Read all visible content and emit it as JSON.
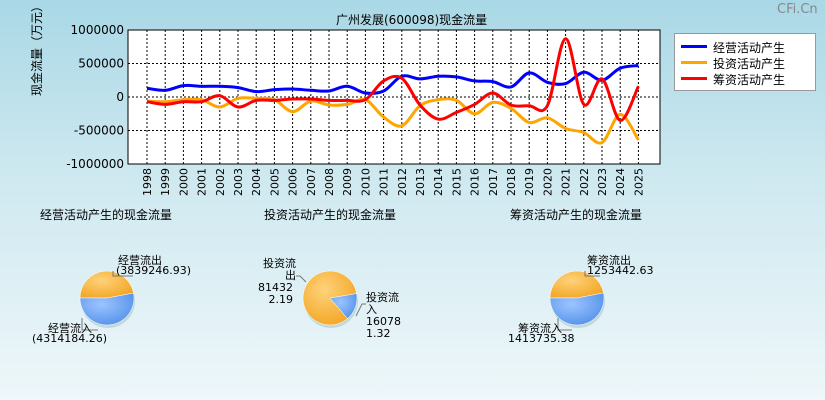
{
  "watermark": "CFi.Cn",
  "chart_data": [
    {
      "type": "line",
      "title": "广州发展(600098)现金流量",
      "ylabel": "现金流量（万元）",
      "ylim": [
        -1000000,
        1000000
      ],
      "yticks": [
        "1000000",
        "500000",
        "0",
        "-500000",
        "-1000000"
      ],
      "yticks_values": [
        1000000,
        500000,
        0,
        -500000,
        -1000000
      ],
      "grid": true,
      "legend": "top-right",
      "x": [
        "1998",
        "1999",
        "2000",
        "2001",
        "2002",
        "2003",
        "2004",
        "2005",
        "2006",
        "2007",
        "2008",
        "2009",
        "2010",
        "2011",
        "2012",
        "2013",
        "2014",
        "2015",
        "2016",
        "2017",
        "2018",
        "2019",
        "2020",
        "2021",
        "2022",
        "2023",
        "2024",
        "2025"
      ],
      "series": [
        {
          "name": "经营活动产生",
          "color": "#0000ff",
          "values": [
            130000,
            100000,
            170000,
            160000,
            160000,
            140000,
            80000,
            110000,
            120000,
            100000,
            90000,
            160000,
            60000,
            90000,
            310000,
            270000,
            310000,
            300000,
            240000,
            230000,
            150000,
            360000,
            220000,
            200000,
            370000,
            250000,
            430000,
            470000
          ]
        },
        {
          "name": "投资活动产生",
          "color": "#ffa500",
          "values": [
            -60000,
            -70000,
            -40000,
            -40000,
            -150000,
            -20000,
            -20000,
            -40000,
            -220000,
            -60000,
            -120000,
            -110000,
            -40000,
            -300000,
            -430000,
            -130000,
            -40000,
            -50000,
            -250000,
            -80000,
            -170000,
            -380000,
            -310000,
            -470000,
            -530000,
            -680000,
            -260000,
            -640000
          ]
        },
        {
          "name": "筹资活动产生",
          "color": "#ff0000",
          "values": [
            -70000,
            -110000,
            -70000,
            -70000,
            20000,
            -150000,
            -50000,
            -50000,
            -30000,
            -30000,
            -50000,
            -50000,
            -40000,
            240000,
            280000,
            -120000,
            -330000,
            -230000,
            -110000,
            60000,
            -120000,
            -130000,
            -130000,
            870000,
            -110000,
            270000,
            -350000,
            160000
          ]
        }
      ]
    },
    {
      "type": "pie",
      "title": "经营活动产生的现金流量",
      "labels": [
        "经营流出",
        "经营流入"
      ],
      "values": [
        3839246.93,
        4314184.26
      ],
      "value_labels": [
        "(3839246.93)",
        "(4314184.26)"
      ]
    },
    {
      "type": "pie",
      "title": "投资活动产生的现金流量",
      "labels": [
        "投资流出",
        "投资流入"
      ],
      "values": [
        814322.19,
        160781.32
      ],
      "value_labels": [
        "814322.19",
        "160781.32"
      ]
    },
    {
      "type": "pie",
      "title": "筹资活动产生的现金流量",
      "labels": [
        "筹资流出",
        "筹资流入"
      ],
      "values": [
        1253442.63,
        1413735.38
      ],
      "value_labels": [
        "1253442.63",
        "1413735.38"
      ]
    }
  ],
  "colors": {
    "pie_orange": "#f2a31f",
    "pie_blue": "#4f8ee8",
    "grid": "#000000"
  }
}
